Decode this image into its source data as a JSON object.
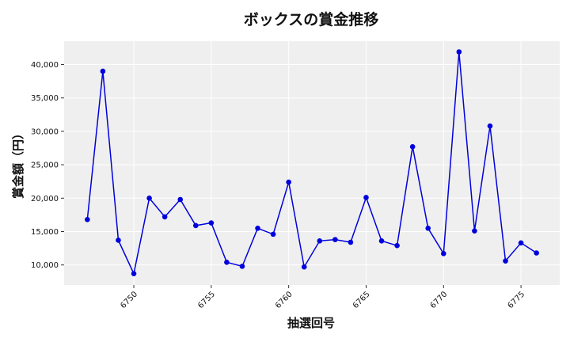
{
  "chart_data": {
    "type": "line",
    "title": "ボックスの賞金推移",
    "xlabel": "抽選回号",
    "ylabel": "賞金額（円）",
    "x": [
      6747,
      6748,
      6749,
      6750,
      6751,
      6752,
      6753,
      6754,
      6755,
      6756,
      6757,
      6758,
      6759,
      6760,
      6761,
      6762,
      6763,
      6764,
      6765,
      6766,
      6767,
      6768,
      6769,
      6770,
      6771,
      6772,
      6773,
      6774,
      6775,
      6776
    ],
    "series": [
      {
        "values": [
          16800,
          39000,
          13700,
          8700,
          20000,
          17200,
          19800,
          15900,
          16300,
          10400,
          9800,
          15500,
          14600,
          22400,
          9700,
          13600,
          13800,
          13400,
          20100,
          13600,
          12900,
          27700,
          15500,
          11700,
          41900,
          15100,
          30800,
          10600,
          13300,
          11800
        ]
      }
    ],
    "xticks": [
      "6750",
      "6755",
      "6760",
      "6765",
      "6770",
      "6775"
    ],
    "yticks": [
      "10,000",
      "15,000",
      "20,000",
      "25,000",
      "30,000",
      "35,000",
      "40,000"
    ],
    "xlim": [
      6745.5,
      6777.5
    ],
    "ylim": [
      7000,
      43500
    ],
    "grid": true,
    "line_color": "#0000dd",
    "marker_color": "#0000dd",
    "plot_background": "#efefef"
  }
}
